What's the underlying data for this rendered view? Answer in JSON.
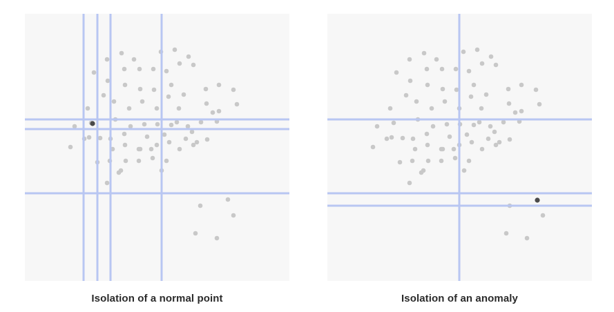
{
  "colors": {
    "panel_background": "#f7f7f7",
    "normal_point": "#c8c8c8",
    "isolated_point": "#4a4a4a",
    "split_line": "#b8c6f2"
  },
  "panels": [
    {
      "caption": "Isolation of a normal point",
      "target": "normal point"
    },
    {
      "caption": "Isolation of an anomaly",
      "target": "anomaly"
    }
  ]
}
